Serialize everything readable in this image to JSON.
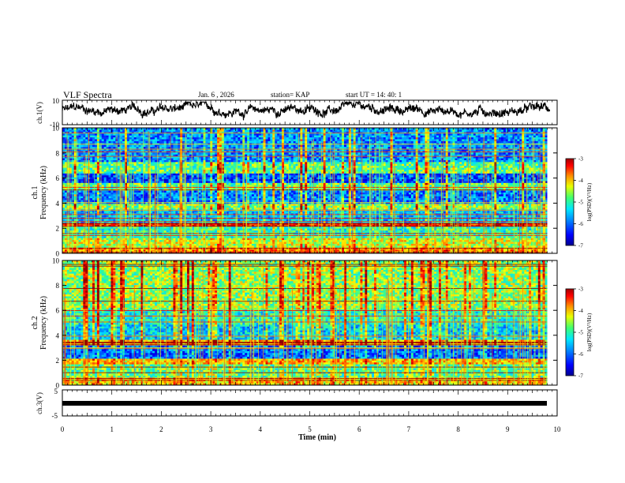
{
  "header": {
    "title": "VLF Spectra",
    "date": "Jan. 6 , 2026",
    "station": "station= KAP",
    "start": "start  UT =  14: 40: 1"
  },
  "colors": {
    "trace": "#000000",
    "background": "#ffffff",
    "colormap": [
      "#000090",
      "#0000ff",
      "#0080ff",
      "#00e0ff",
      "#40ff80",
      "#ffff00",
      "#ff8000",
      "#ff0000",
      "#900000"
    ]
  },
  "chart_data": [
    {
      "type": "line",
      "name": "ch1-voltage",
      "ylabel": "ch.1(V)",
      "ylim": [
        -10,
        10
      ],
      "yticks": [
        "10",
        "-10"
      ],
      "xlim": [
        0,
        10
      ],
      "description_values_note": "noisy waveform centered near 2 V",
      "y_center": 2,
      "y_amplitude": 6
    },
    {
      "type": "heatmap",
      "name": "ch1-spectrogram",
      "ylabel": "ch.1\nFrequency (kHz)",
      "ylim": [
        0,
        10
      ],
      "yticks": [
        "0",
        "2",
        "4",
        "6",
        "8",
        "10"
      ],
      "xlim": [
        0,
        9.8
      ],
      "colorbar": {
        "label": "log(PSD)(V²/Hz)",
        "range": [
          -7,
          -3
        ],
        "ticks": [
          "-3",
          "-4",
          "-5",
          "-6",
          "-7"
        ]
      },
      "bands_khz": [
        {
          "f": [
            0,
            0.5
          ],
          "level": -4.0
        },
        {
          "f": [
            0.5,
            1.2
          ],
          "level": -4.6
        },
        {
          "f": [
            1.2,
            2.1
          ],
          "level": -5.2
        },
        {
          "f": [
            2.1,
            2.4
          ],
          "level": -3.6
        },
        {
          "f": [
            2.4,
            3.5
          ],
          "level": -5.7
        },
        {
          "f": [
            3.5,
            3.9
          ],
          "level": -4.8
        },
        {
          "f": [
            3.9,
            5.0
          ],
          "level": -6.0
        },
        {
          "f": [
            5.0,
            5.6
          ],
          "level": -5.0
        },
        {
          "f": [
            5.6,
            6.4
          ],
          "level": -6.2
        },
        {
          "f": [
            6.4,
            7.2
          ],
          "level": -5.0
        },
        {
          "f": [
            7.2,
            10
          ],
          "level": -5.9
        }
      ]
    },
    {
      "type": "heatmap",
      "name": "ch2-spectrogram",
      "ylabel": "ch.2\nFrequency (kHz)",
      "ylim": [
        0,
        10
      ],
      "yticks": [
        "0",
        "2",
        "4",
        "6",
        "8",
        "10"
      ],
      "xlim": [
        0,
        9.8
      ],
      "colorbar": {
        "label": "log(PSD)(V²/Hz)",
        "range": [
          -7,
          -3
        ],
        "ticks": [
          "-3",
          "-4",
          "-5",
          "-6",
          "-7"
        ]
      },
      "bands_khz": [
        {
          "f": [
            0,
            0.6
          ],
          "level": -4.3
        },
        {
          "f": [
            0.6,
            1.6
          ],
          "level": -5.0
        },
        {
          "f": [
            1.6,
            2.1
          ],
          "level": -4.3
        },
        {
          "f": [
            2.1,
            3.2
          ],
          "level": -6.1
        },
        {
          "f": [
            3.2,
            3.6
          ],
          "level": -4.2
        },
        {
          "f": [
            3.6,
            4.8
          ],
          "level": -5.6
        },
        {
          "f": [
            4.8,
            6.0
          ],
          "level": -5.3
        },
        {
          "f": [
            6.0,
            10
          ],
          "level": -4.8
        }
      ]
    },
    {
      "type": "line",
      "name": "ch3-voltage",
      "ylabel": "ch.3(V)",
      "ylim": [
        -5,
        5
      ],
      "yticks": [
        "5",
        "-5"
      ],
      "xlim": [
        0,
        10
      ],
      "constant_value": 0
    }
  ],
  "xaxis": {
    "label": "Time (min)",
    "ticks": [
      "0",
      "1",
      "2",
      "3",
      "4",
      "5",
      "6",
      "7",
      "8",
      "9",
      "10"
    ],
    "range": [
      0,
      10
    ]
  }
}
